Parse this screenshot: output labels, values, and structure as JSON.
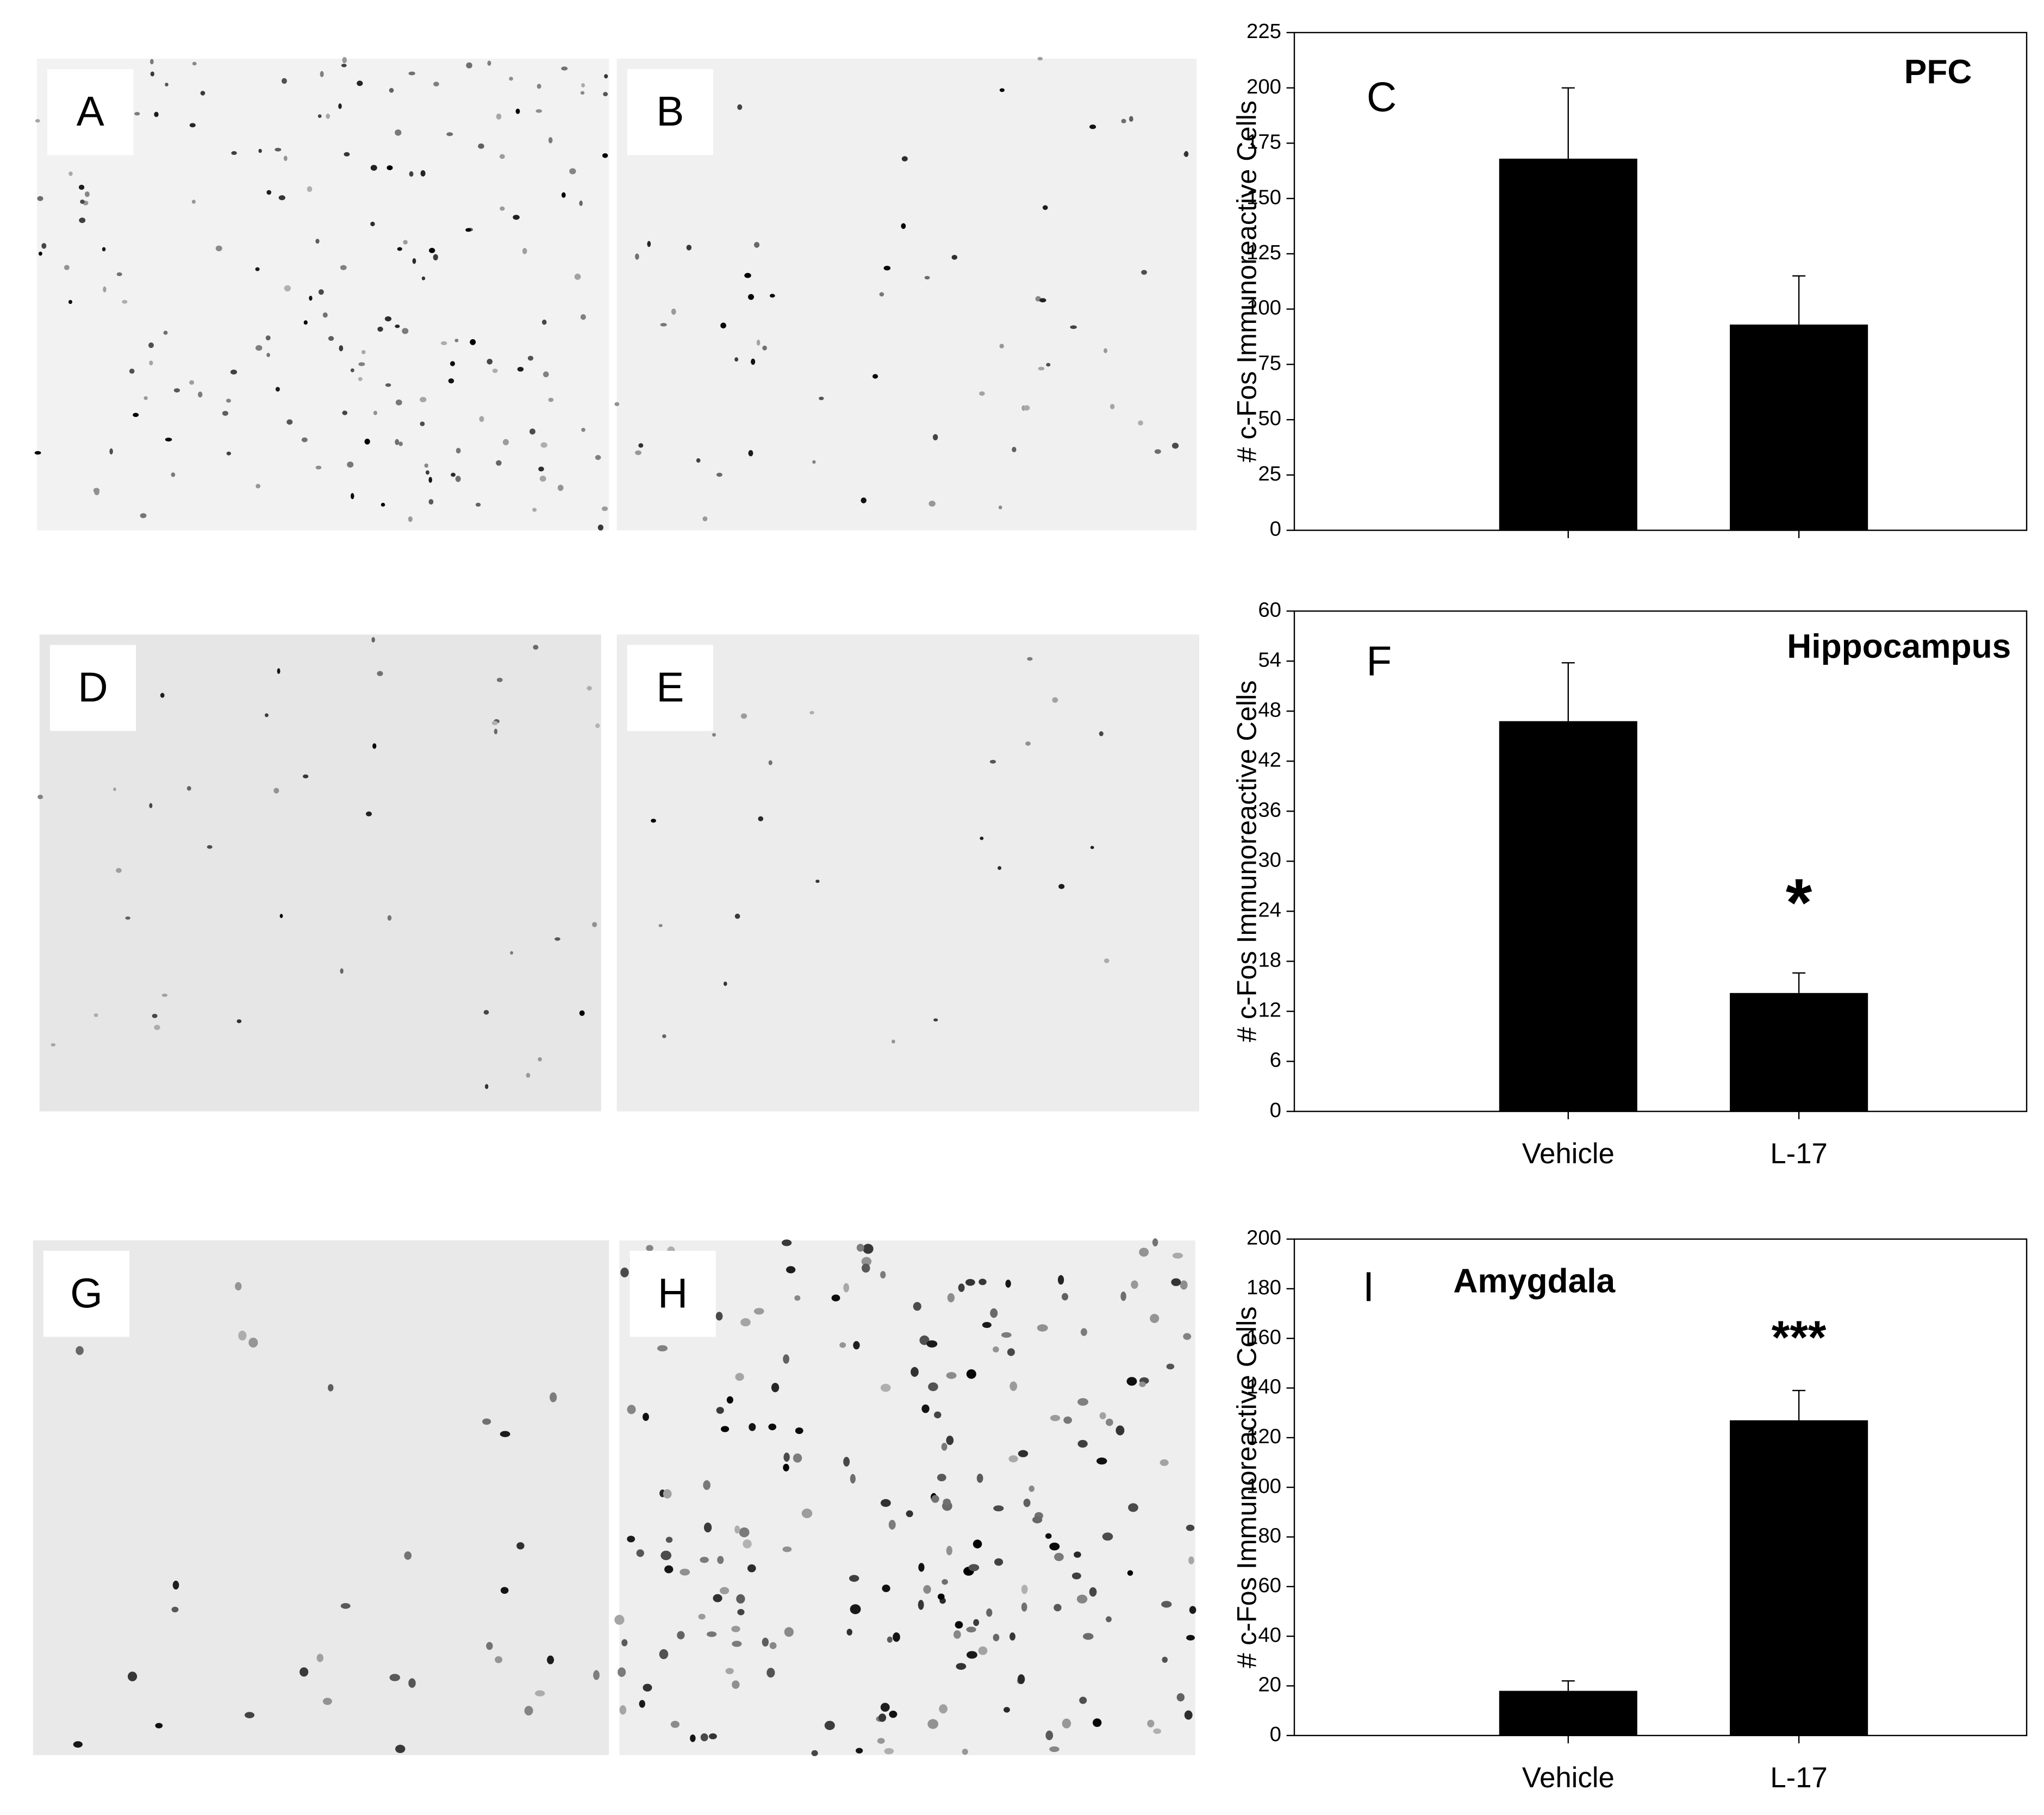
{
  "panels": [
    "A",
    "B",
    "D",
    "E",
    "G",
    "H"
  ],
  "chart_data": [
    {
      "type": "bar",
      "panel": "C",
      "title": "PFC",
      "ylabel": "# c-Fos Immunoreactive Cells",
      "categories": [
        null,
        null
      ],
      "values": [
        168,
        93
      ],
      "errors": [
        32,
        22
      ],
      "annotations": [
        null,
        null
      ],
      "color": "#000000",
      "ylim": [
        0,
        225
      ],
      "yticks": [
        0,
        25,
        50,
        75,
        100,
        125,
        150,
        175,
        200,
        225
      ]
    },
    {
      "type": "bar",
      "panel": "F",
      "title": "Hippocampus",
      "ylabel": "# c-Fos Immunoreactive Cells",
      "categories": [
        "Vehicle",
        "L-17"
      ],
      "values": [
        46.8,
        14.2
      ],
      "errors": [
        7,
        2.4
      ],
      "annotations": [
        null,
        "*"
      ],
      "color": "#000000",
      "ylim": [
        0,
        60
      ],
      "yticks": [
        0,
        6,
        12,
        18,
        24,
        30,
        36,
        42,
        48,
        54,
        60
      ]
    },
    {
      "type": "bar",
      "panel": "I",
      "title": "Amygdala",
      "ylabel": "# c-Fos Immunoreactive Cells",
      "categories": [
        "Vehicle",
        "L-17"
      ],
      "values": [
        18,
        127
      ],
      "errors": [
        4,
        12
      ],
      "annotations": [
        null,
        "***"
      ],
      "color": "#000000",
      "ylim": [
        0,
        200
      ],
      "yticks": [
        0,
        20,
        40,
        60,
        80,
        100,
        120,
        140,
        160,
        180,
        200
      ]
    }
  ]
}
